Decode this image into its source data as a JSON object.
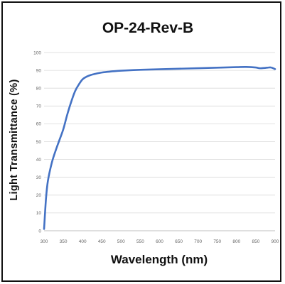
{
  "chart_data": {
    "type": "line",
    "title": "OP-24-Rev-B",
    "xlabel": "Wavelength (nm)",
    "ylabel": "Light Transmittance (%)",
    "xlim": [
      300,
      900
    ],
    "ylim": [
      0,
      100
    ],
    "xticks": [
      300,
      350,
      400,
      450,
      500,
      550,
      600,
      650,
      700,
      750,
      800,
      850,
      900
    ],
    "yticks": [
      0,
      10,
      20,
      30,
      40,
      50,
      60,
      70,
      80,
      90,
      100
    ],
    "grid": "horizontal",
    "series_color": "#4472c4",
    "x": [
      300,
      305,
      310,
      320,
      330,
      340,
      350,
      360,
      370,
      380,
      390,
      400,
      410,
      420,
      430,
      440,
      450,
      470,
      500,
      550,
      600,
      650,
      700,
      750,
      800,
      825,
      850,
      860,
      870,
      880,
      890,
      900
    ],
    "y": [
      1,
      18,
      28,
      38,
      45,
      51,
      57,
      65,
      72,
      78,
      82,
      85,
      86.4,
      87.3,
      87.9,
      88.4,
      88.8,
      89.3,
      89.8,
      90.3,
      90.6,
      90.9,
      91.2,
      91.5,
      91.8,
      91.9,
      91.6,
      91.2,
      91.3,
      91.5,
      91.6,
      90.7
    ]
  }
}
